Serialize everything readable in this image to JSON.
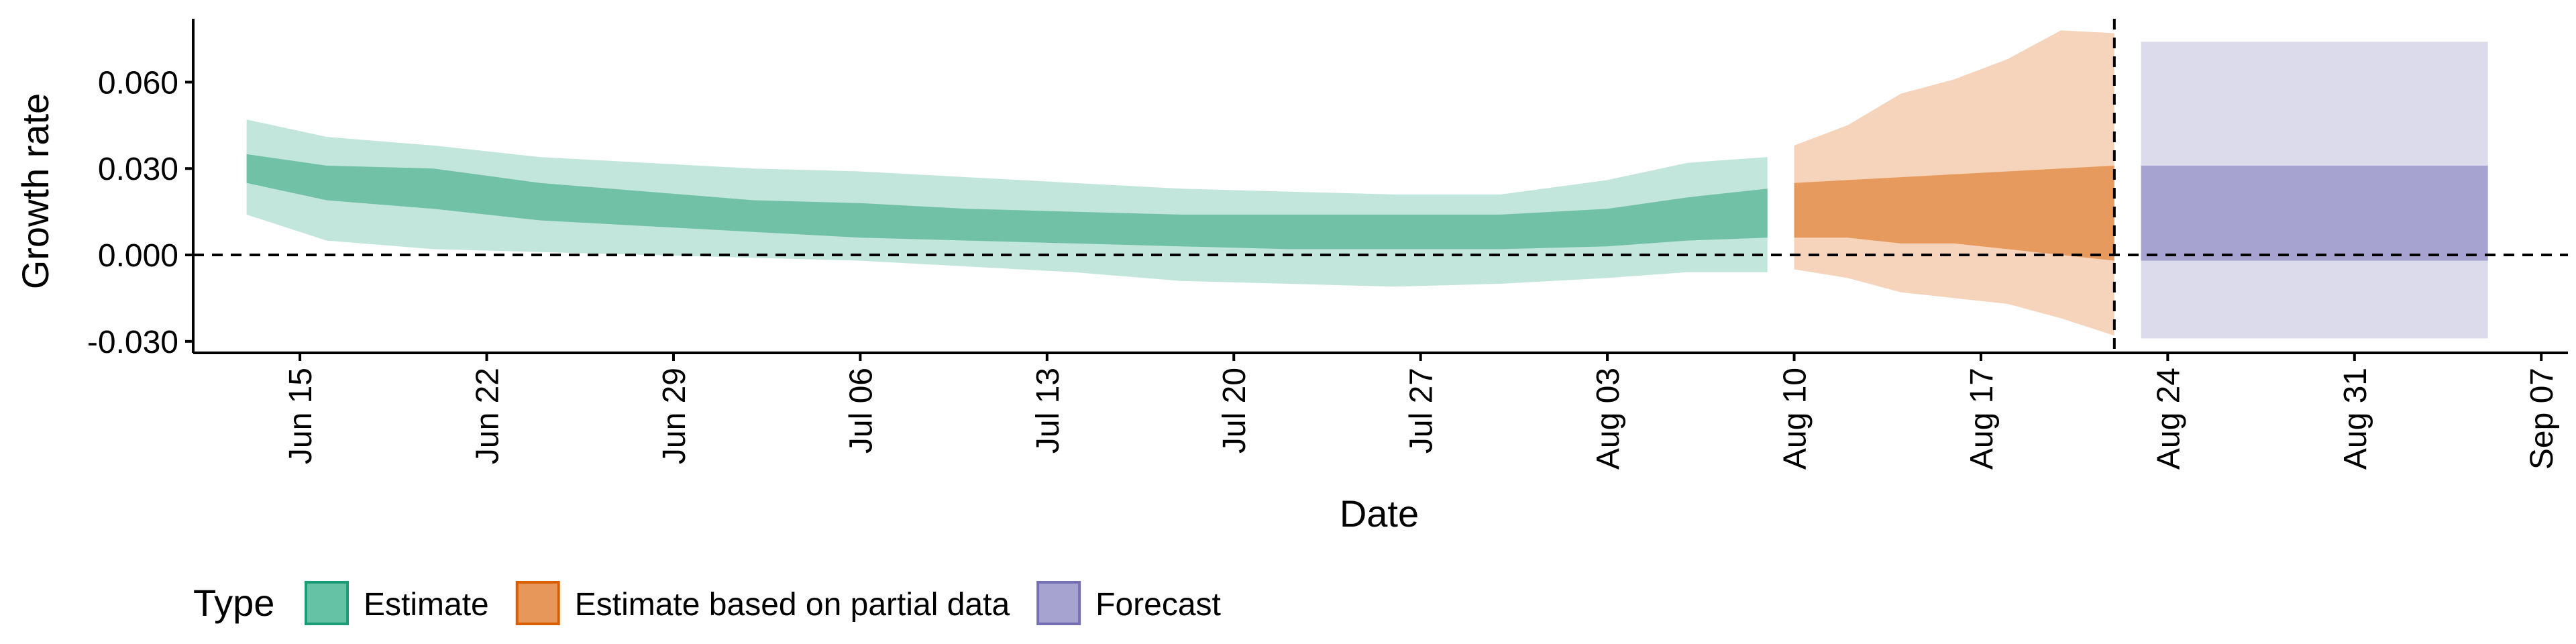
{
  "chart_data": {
    "type": "area",
    "xlabel": "Date",
    "ylabel": "Growth rate",
    "x_axis": {
      "start": "2021-06-11",
      "end": "2021-09-08",
      "ticks": [
        "2021-06-15",
        "2021-06-22",
        "2021-06-29",
        "2021-07-06",
        "2021-07-13",
        "2021-07-20",
        "2021-07-27",
        "2021-08-03",
        "2021-08-10",
        "2021-08-17",
        "2021-08-24",
        "2021-08-31",
        "2021-09-07"
      ],
      "tick_labels": [
        "Jun 15",
        "Jun 22",
        "Jun 29",
        "Jul 06",
        "Jul 13",
        "Jul 20",
        "Jul 27",
        "Aug 03",
        "Aug 10",
        "Aug 17",
        "Aug 24",
        "Aug 31",
        "Sep 07"
      ]
    },
    "y_axis": {
      "ylim": [
        -0.034,
        0.082
      ],
      "ticks": [
        -0.03,
        0.0,
        0.03,
        0.06
      ],
      "tick_labels": [
        "-0.030",
        "0.000",
        "0.030",
        "0.060"
      ]
    },
    "reference_lines": {
      "horizontal_y": 0.0,
      "vertical_date": "2021-08-22"
    },
    "legend": {
      "title": "Type",
      "position": "bottom",
      "items": [
        {
          "label": "Estimate",
          "fill": "#66c2a5",
          "border": "#1b9e77"
        },
        {
          "label": "Estimate based on partial data",
          "fill": "#e8975a",
          "border": "#d95f02"
        },
        {
          "label": "Forecast",
          "fill": "#a7a3d0",
          "border": "#7570b3"
        }
      ]
    },
    "series": [
      {
        "name": "Estimate",
        "outer_color": "#c3e6dc",
        "inner_color": "#71c1a6",
        "points": [
          {
            "x": "2021-06-13",
            "o_lo": 0.014,
            "i_lo": 0.025,
            "i_hi": 0.035,
            "o_hi": 0.047
          },
          {
            "x": "2021-06-16",
            "o_lo": 0.005,
            "i_lo": 0.019,
            "i_hi": 0.031,
            "o_hi": 0.041
          },
          {
            "x": "2021-06-20",
            "o_lo": 0.002,
            "i_lo": 0.016,
            "i_hi": 0.03,
            "o_hi": 0.038
          },
          {
            "x": "2021-06-24",
            "o_lo": 0.001,
            "i_lo": 0.012,
            "i_hi": 0.025,
            "o_hi": 0.034
          },
          {
            "x": "2021-06-28",
            "o_lo": 0.0,
            "i_lo": 0.01,
            "i_hi": 0.022,
            "o_hi": 0.032
          },
          {
            "x": "2021-07-02",
            "o_lo": -0.001,
            "i_lo": 0.008,
            "i_hi": 0.019,
            "o_hi": 0.03
          },
          {
            "x": "2021-07-06",
            "o_lo": -0.002,
            "i_lo": 0.006,
            "i_hi": 0.018,
            "o_hi": 0.029
          },
          {
            "x": "2021-07-10",
            "o_lo": -0.004,
            "i_lo": 0.005,
            "i_hi": 0.016,
            "o_hi": 0.027
          },
          {
            "x": "2021-07-14",
            "o_lo": -0.006,
            "i_lo": 0.004,
            "i_hi": 0.015,
            "o_hi": 0.025
          },
          {
            "x": "2021-07-18",
            "o_lo": -0.009,
            "i_lo": 0.003,
            "i_hi": 0.014,
            "o_hi": 0.023
          },
          {
            "x": "2021-07-22",
            "o_lo": -0.01,
            "i_lo": 0.002,
            "i_hi": 0.014,
            "o_hi": 0.022
          },
          {
            "x": "2021-07-26",
            "o_lo": -0.011,
            "i_lo": 0.002,
            "i_hi": 0.014,
            "o_hi": 0.021
          },
          {
            "x": "2021-07-30",
            "o_lo": -0.01,
            "i_lo": 0.002,
            "i_hi": 0.014,
            "o_hi": 0.021
          },
          {
            "x": "2021-08-03",
            "o_lo": -0.008,
            "i_lo": 0.003,
            "i_hi": 0.016,
            "o_hi": 0.026
          },
          {
            "x": "2021-08-06",
            "o_lo": -0.006,
            "i_lo": 0.005,
            "i_hi": 0.02,
            "o_hi": 0.032
          },
          {
            "x": "2021-08-09",
            "o_lo": -0.006,
            "i_lo": 0.006,
            "i_hi": 0.023,
            "o_hi": 0.034
          }
        ]
      },
      {
        "name": "Estimate based on partial data",
        "outer_color": "#f5d4bb",
        "inner_color": "#e79a5e",
        "points": [
          {
            "x": "2021-08-10",
            "o_lo": -0.005,
            "i_lo": 0.006,
            "i_hi": 0.025,
            "o_hi": 0.038
          },
          {
            "x": "2021-08-12",
            "o_lo": -0.008,
            "i_lo": 0.006,
            "i_hi": 0.026,
            "o_hi": 0.045
          },
          {
            "x": "2021-08-14",
            "o_lo": -0.013,
            "i_lo": 0.004,
            "i_hi": 0.027,
            "o_hi": 0.056
          },
          {
            "x": "2021-08-16",
            "o_lo": -0.015,
            "i_lo": 0.004,
            "i_hi": 0.028,
            "o_hi": 0.061
          },
          {
            "x": "2021-08-18",
            "o_lo": -0.017,
            "i_lo": 0.002,
            "i_hi": 0.029,
            "o_hi": 0.068
          },
          {
            "x": "2021-08-20",
            "o_lo": -0.022,
            "i_lo": 0.0,
            "i_hi": 0.03,
            "o_hi": 0.078
          },
          {
            "x": "2021-08-22",
            "o_lo": -0.028,
            "i_lo": -0.002,
            "i_hi": 0.031,
            "o_hi": 0.077
          }
        ]
      },
      {
        "name": "Forecast",
        "outer_color": "#dcdbec",
        "inner_color": "#a7a3d0",
        "points": [
          {
            "x": "2021-08-23",
            "o_lo": -0.029,
            "i_lo": -0.002,
            "i_hi": 0.031,
            "o_hi": 0.074
          },
          {
            "x": "2021-09-05",
            "o_lo": -0.029,
            "i_lo": -0.002,
            "i_hi": 0.031,
            "o_hi": 0.074
          }
        ]
      }
    ]
  }
}
